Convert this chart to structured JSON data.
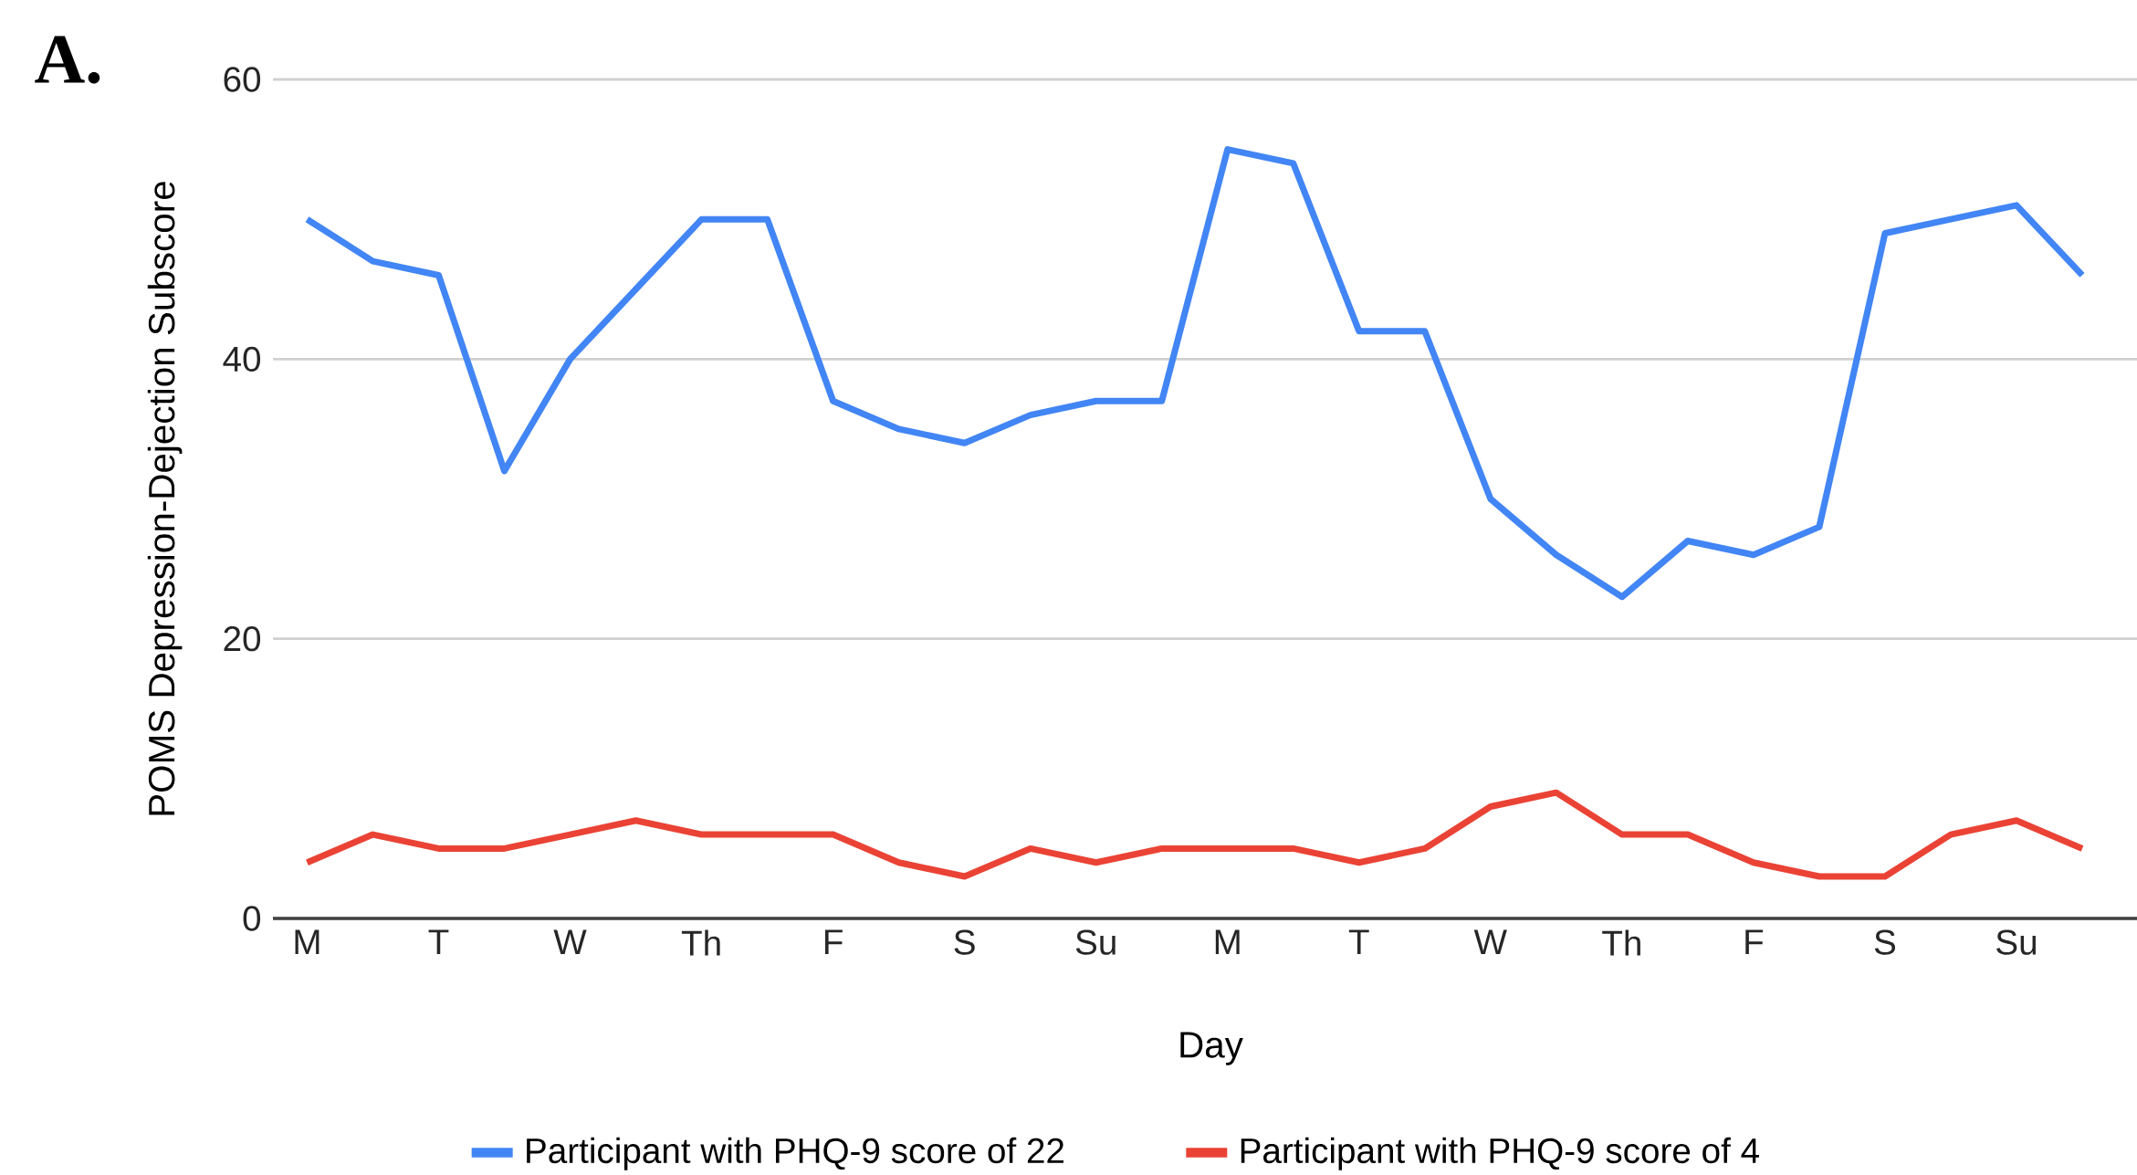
{
  "chart_data": {
    "type": "line",
    "xlabel": "Day",
    "ylabel": "POMS Depression-Dejection Subscore",
    "annotations": [
      "A."
    ],
    "categories": [
      "M",
      null,
      "T",
      null,
      "W",
      null,
      "Th",
      null,
      "F",
      null,
      "S",
      null,
      "Su",
      null,
      "M",
      null,
      "T",
      null,
      "W",
      null,
      "Th",
      null,
      "F",
      null,
      "S",
      null,
      "Su",
      null
    ],
    "series": [
      {
        "name": "Participant with PHQ-9 score of 22",
        "color": "#4285f4",
        "values": [
          50,
          47,
          46,
          32,
          40,
          45,
          50,
          50,
          37,
          35,
          34,
          36,
          37,
          37,
          55,
          54,
          42,
          42,
          30,
          26,
          23,
          27,
          26,
          28,
          49,
          50,
          51,
          46
        ]
      },
      {
        "name": "Participant with PHQ-9 score of 4",
        "color": "#ea4335",
        "values": [
          4,
          6,
          5,
          5,
          6,
          7,
          6,
          6,
          6,
          4,
          3,
          5,
          4,
          5,
          5,
          5,
          4,
          5,
          8,
          9,
          6,
          6,
          4,
          3,
          3,
          6,
          7,
          5
        ]
      }
    ],
    "ylim": [
      0,
      60
    ],
    "yticks": [
      0,
      20,
      40,
      60
    ],
    "grid": "y",
    "legend": "bottom",
    "marker": "none",
    "line_style": "solid"
  }
}
